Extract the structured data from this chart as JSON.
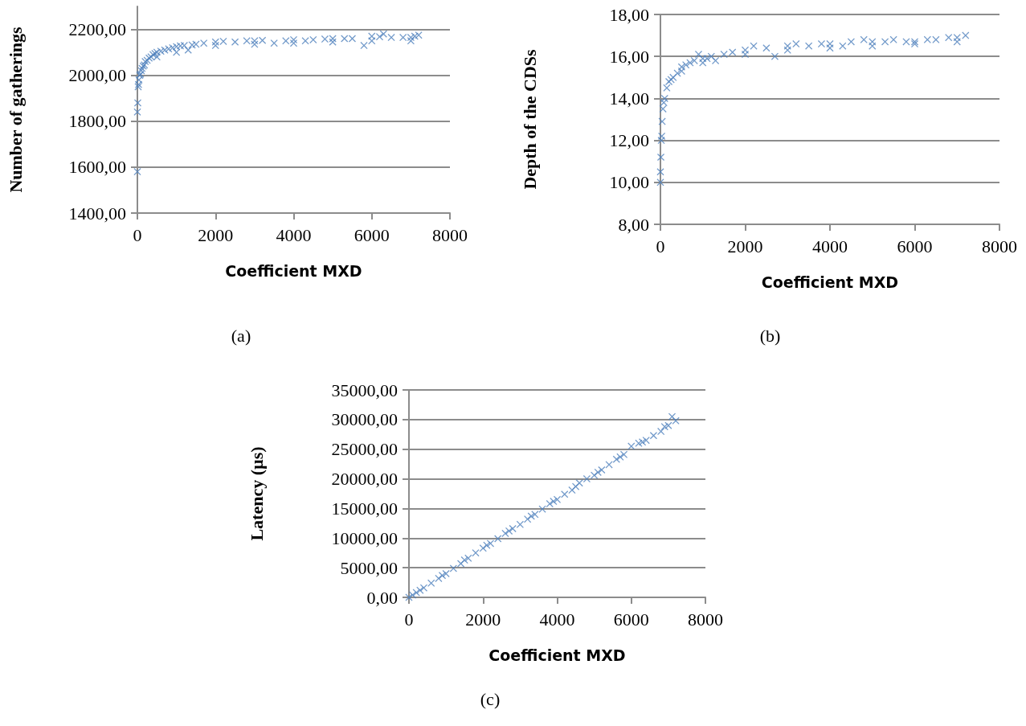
{
  "chart_data": [
    {
      "type": "scatter",
      "xlabel": "Coefficient MXD",
      "ylabel": "Number of gatherings",
      "annotations": [
        "(a)"
      ],
      "marker": "cross",
      "grid": "y",
      "xlim": [
        0,
        8000
      ],
      "xticks": [
        0,
        2000,
        4000,
        6000,
        8000
      ],
      "ylim": [
        1400,
        2300
      ],
      "yticks": [
        {
          "value": 1400,
          "label": "1400,00"
        },
        {
          "value": 1600,
          "label": "1600,00"
        },
        {
          "value": 1800,
          "label": "1800,00"
        },
        {
          "value": 2000,
          "label": "2000,00"
        },
        {
          "value": 2200,
          "label": "2200,00"
        }
      ],
      "series": [
        {
          "color": "#4f81bd",
          "x": [
            0,
            0,
            10,
            20,
            30,
            40,
            60,
            80,
            100,
            120,
            150,
            180,
            200,
            250,
            300,
            350,
            400,
            450,
            500,
            600,
            700,
            800,
            900,
            1000,
            1100,
            1200,
            1300,
            1400,
            1500,
            1700,
            2000,
            2200,
            2500,
            2800,
            3000,
            3200,
            3500,
            3800,
            4000,
            4300,
            4500,
            4800,
            5000,
            5300,
            5500,
            5800,
            6000,
            6200,
            6300,
            6500,
            6800,
            7000,
            7100,
            7200,
            500,
            1000,
            2000,
            3000,
            4000,
            5000,
            6000,
            7000
          ],
          "values": [
            1580,
            1840,
            1880,
            1950,
            1960,
            1980,
            2000,
            2005,
            2020,
            2030,
            2040,
            2045,
            2060,
            2065,
            2075,
            2080,
            2090,
            2095,
            2100,
            2105,
            2110,
            2115,
            2120,
            2125,
            2128,
            2130,
            2110,
            2132,
            2135,
            2140,
            2145,
            2148,
            2145,
            2150,
            2150,
            2152,
            2140,
            2150,
            2155,
            2150,
            2155,
            2158,
            2160,
            2160,
            2160,
            2130,
            2170,
            2168,
            2180,
            2165,
            2165,
            2165,
            2170,
            2175,
            2080,
            2100,
            2130,
            2135,
            2140,
            2145,
            2150,
            2150
          ]
        }
      ]
    },
    {
      "type": "scatter",
      "xlabel": "Coefficient MXD",
      "ylabel": "Depth of the CDSs",
      "annotations": [
        "(b)"
      ],
      "marker": "cross",
      "grid": "y",
      "xlim": [
        0,
        8000
      ],
      "xticks": [
        0,
        2000,
        4000,
        6000,
        8000
      ],
      "ylim": [
        8,
        18
      ],
      "yticks": [
        {
          "value": 8,
          "label": "8,00"
        },
        {
          "value": 10,
          "label": "10,00"
        },
        {
          "value": 12,
          "label": "12,00"
        },
        {
          "value": 14,
          "label": "14,00"
        },
        {
          "value": 16,
          "label": "16,00"
        },
        {
          "value": 18,
          "label": "18,00"
        }
      ],
      "series": [
        {
          "color": "#4f81bd",
          "x": [
            0,
            0,
            10,
            20,
            30,
            40,
            60,
            80,
            100,
            150,
            200,
            250,
            300,
            400,
            500,
            600,
            700,
            800,
            900,
            1000,
            1100,
            1200,
            1300,
            1500,
            1700,
            2000,
            2200,
            2500,
            2700,
            3000,
            3200,
            3500,
            3800,
            4000,
            4300,
            4500,
            4800,
            5000,
            5300,
            5500,
            5800,
            6000,
            6300,
            6500,
            6800,
            7000,
            7200,
            500,
            1000,
            2000,
            3000,
            4000,
            5000,
            6000,
            7000
          ],
          "values": [
            10.0,
            10.5,
            11.2,
            12.0,
            12.2,
            12.9,
            13.5,
            13.8,
            14.0,
            14.5,
            14.8,
            14.9,
            15.0,
            15.2,
            15.5,
            15.6,
            15.7,
            15.8,
            16.1,
            15.9,
            15.9,
            16.0,
            15.8,
            16.1,
            16.2,
            16.3,
            16.5,
            16.4,
            16.0,
            16.5,
            16.6,
            16.5,
            16.6,
            16.6,
            16.5,
            16.7,
            16.8,
            16.7,
            16.7,
            16.8,
            16.7,
            16.7,
            16.8,
            16.8,
            16.9,
            16.9,
            17.0,
            15.3,
            15.7,
            16.1,
            16.3,
            16.4,
            16.5,
            16.6,
            16.7
          ]
        }
      ]
    },
    {
      "type": "scatter",
      "xlabel": "Coefficient MXD",
      "ylabel": "Latency (µs)",
      "annotations": [
        "(c)"
      ],
      "marker": "cross",
      "grid": "y",
      "xlim": [
        0,
        8000
      ],
      "xticks": [
        0,
        2000,
        4000,
        6000,
        8000
      ],
      "ylim": [
        0,
        35000
      ],
      "yticks": [
        {
          "value": 0,
          "label": "0,00"
        },
        {
          "value": 5000,
          "label": "5000,00"
        },
        {
          "value": 10000,
          "label": "10000,00"
        },
        {
          "value": 15000,
          "label": "15000,00"
        },
        {
          "value": 20000,
          "label": "20000,00"
        },
        {
          "value": 25000,
          "label": "25000,00"
        },
        {
          "value": 30000,
          "label": "30000,00"
        },
        {
          "value": 35000,
          "label": "35000,00"
        }
      ],
      "series": [
        {
          "color": "#4f81bd",
          "x": [
            0,
            100,
            200,
            400,
            600,
            800,
            1000,
            1200,
            1400,
            1600,
            1800,
            2000,
            2200,
            2400,
            2600,
            2800,
            3000,
            3200,
            3400,
            3600,
            3800,
            4000,
            4200,
            4400,
            4600,
            4800,
            5000,
            5200,
            5400,
            5600,
            5800,
            6000,
            6200,
            6400,
            6600,
            6800,
            7000,
            7100,
            7200,
            300,
            900,
            1500,
            2100,
            2700,
            3300,
            3900,
            4500,
            5100,
            5700,
            6300,
            6900
          ],
          "values": [
            0,
            400,
            800,
            1600,
            2400,
            3200,
            4000,
            4900,
            5700,
            6600,
            7500,
            8300,
            9100,
            9900,
            10800,
            11600,
            12300,
            13200,
            14000,
            14900,
            15800,
            16500,
            17400,
            18100,
            19300,
            20000,
            20600,
            21500,
            22400,
            23300,
            24100,
            25500,
            26000,
            26500,
            27300,
            28000,
            29000,
            30500,
            29800,
            1200,
            3700,
            6300,
            8800,
            11200,
            13700,
            16200,
            18700,
            21100,
            23700,
            26200,
            28800
          ]
        }
      ]
    }
  ]
}
